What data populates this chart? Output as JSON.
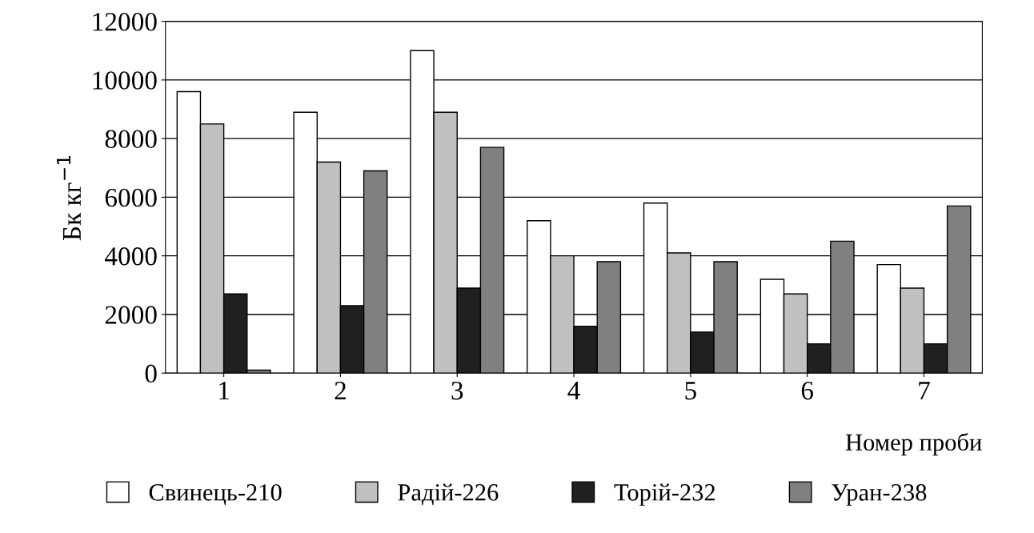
{
  "chart_data": {
    "type": "bar",
    "xlabel": "Номер проби",
    "ylabel": "Бк кг$^{−1}$",
    "categories": [
      "1",
      "2",
      "3",
      "4",
      "5",
      "6",
      "7"
    ],
    "series": [
      {
        "name": "Свинець-210",
        "color": "#ffffff",
        "values": [
          9600,
          8900,
          11000,
          5200,
          5800,
          3200,
          3700
        ]
      },
      {
        "name": "Радій-226",
        "color": "#c0c0c0",
        "values": [
          8500,
          7200,
          8900,
          4000,
          4100,
          2700,
          2900
        ]
      },
      {
        "name": "Торій-232",
        "color": "#202020",
        "values": [
          2700,
          2300,
          2900,
          1600,
          1400,
          1000,
          1000
        ]
      },
      {
        "name": "Уран-238",
        "color": "#808080",
        "values": [
          100,
          6900,
          7700,
          3800,
          3800,
          4500,
          5700
        ]
      }
    ],
    "ylim": [
      0,
      12000
    ],
    "yticks": [
      0,
      2000,
      4000,
      6000,
      8000,
      10000,
      12000
    ],
    "grid": "y",
    "legend": "bottom"
  }
}
